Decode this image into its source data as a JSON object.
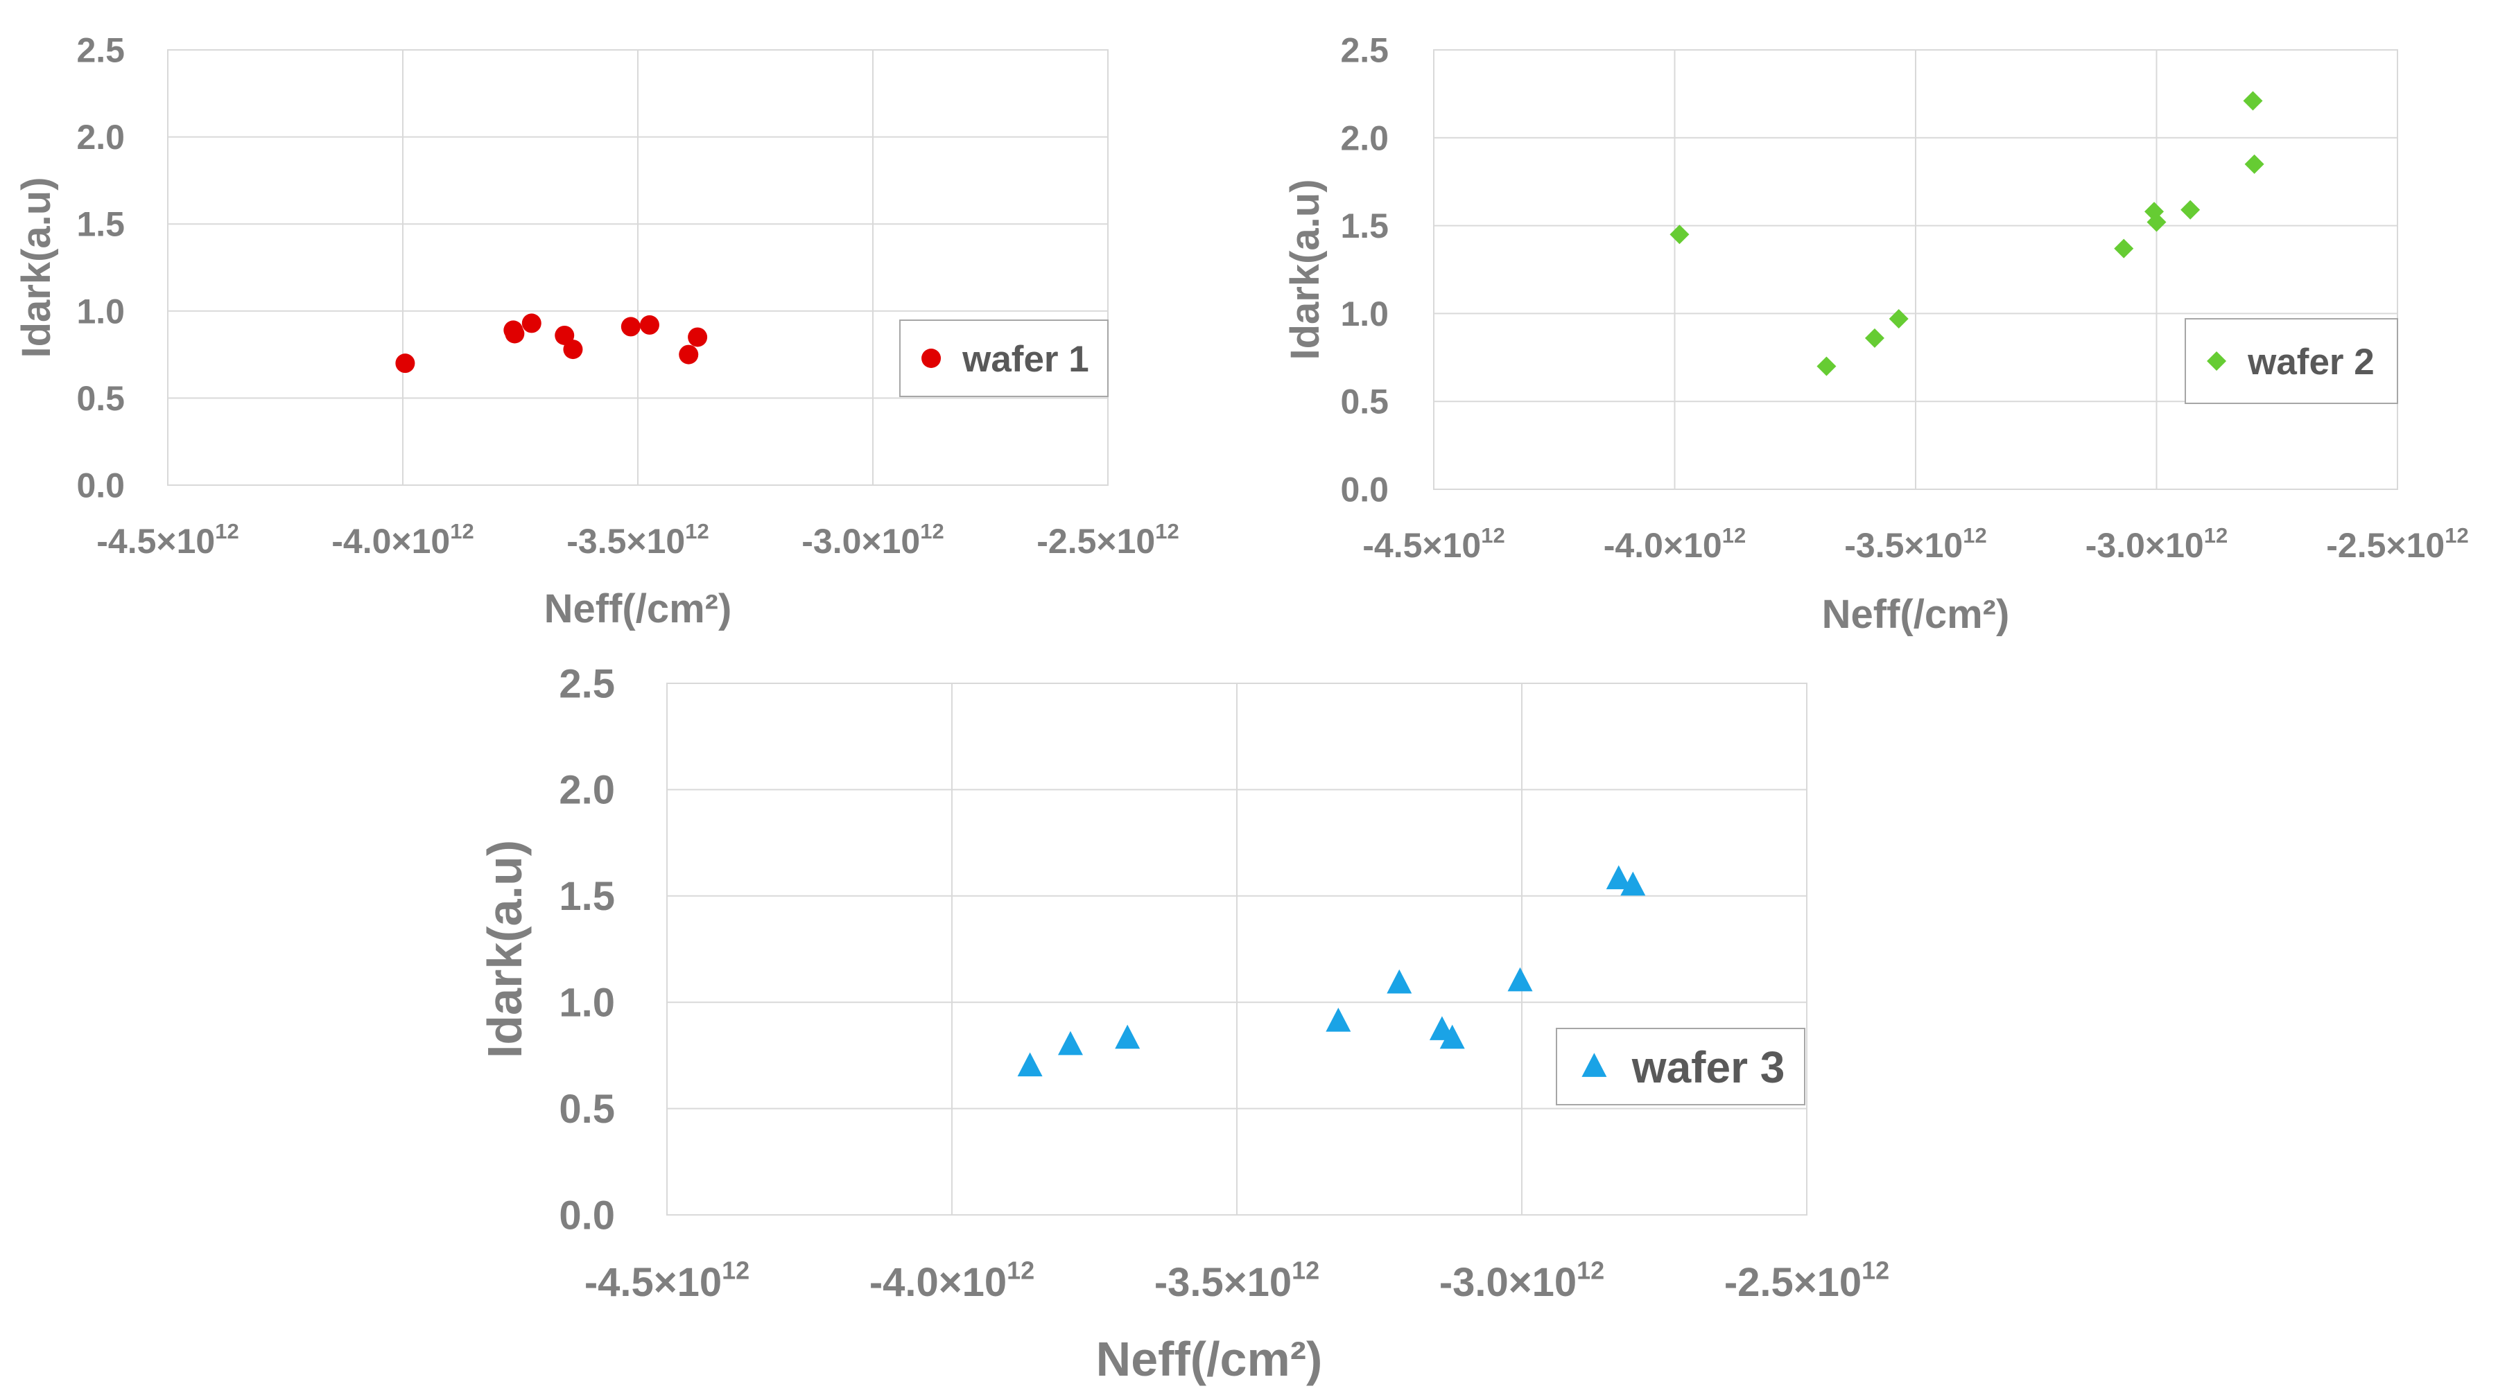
{
  "chart_data": [
    {
      "type": "scatter",
      "title": "",
      "xlabel": "Neff(/cm²)",
      "ylabel": "Idark(a.u)",
      "xlim": [
        -4500000000000.0,
        -2500000000000.0
      ],
      "ylim": [
        0,
        2.5
      ],
      "x_ticks": [
        -4500000000000.0,
        -4000000000000.0,
        -3500000000000.0,
        -3000000000000.0,
        -2500000000000.0
      ],
      "x_tick_labels": [
        {
          "mantissa": "-4.5×10",
          "exp": "12"
        },
        {
          "mantissa": "-4.0×10",
          "exp": "12"
        },
        {
          "mantissa": "-3.5×10",
          "exp": "12"
        },
        {
          "mantissa": "-3.0×10",
          "exp": "12"
        },
        {
          "mantissa": "-2.5×10",
          "exp": "12"
        }
      ],
      "y_ticks": [
        0,
        0.5,
        1.0,
        1.5,
        2.0,
        2.5
      ],
      "y_tick_labels": [
        "0.0",
        "0.5",
        "1.0",
        "1.5",
        "2.0",
        "2.5"
      ],
      "grid": true,
      "legend_position": "right",
      "series": [
        {
          "name": "wafer 1",
          "marker": "circle",
          "color": "#e00000",
          "points": [
            {
              "x": -3995000000000.0,
              "y": 0.7
            },
            {
              "x": -3765000000000.0,
              "y": 0.89
            },
            {
              "x": -3762000000000.0,
              "y": 0.87
            },
            {
              "x": -3726000000000.0,
              "y": 0.93
            },
            {
              "x": -3656000000000.0,
              "y": 0.86
            },
            {
              "x": -3638000000000.0,
              "y": 0.78
            },
            {
              "x": -3515000000000.0,
              "y": 0.91
            },
            {
              "x": -3475000000000.0,
              "y": 0.92
            },
            {
              "x": -3392000000000.0,
              "y": 0.75
            },
            {
              "x": -3373000000000.0,
              "y": 0.85
            }
          ]
        }
      ]
    },
    {
      "type": "scatter",
      "title": "",
      "xlabel": "Neff(/cm²)",
      "ylabel": "Idark(a.u)",
      "xlim": [
        -4500000000000.0,
        -2500000000000.0
      ],
      "ylim": [
        0,
        2.5
      ],
      "x_ticks": [
        -4500000000000.0,
        -4000000000000.0,
        -3500000000000.0,
        -3000000000000.0,
        -2500000000000.0
      ],
      "x_tick_labels": [
        {
          "mantissa": "-4.5×10",
          "exp": "12"
        },
        {
          "mantissa": "-4.0×10",
          "exp": "12"
        },
        {
          "mantissa": "-3.5×10",
          "exp": "12"
        },
        {
          "mantissa": "-3.0×10",
          "exp": "12"
        },
        {
          "mantissa": "-2.5×10",
          "exp": "12"
        }
      ],
      "y_ticks": [
        0,
        0.5,
        1.0,
        1.5,
        2.0,
        2.5
      ],
      "y_tick_labels": [
        "0.0",
        "0.5",
        "1.0",
        "1.5",
        "2.0",
        "2.5"
      ],
      "grid": true,
      "legend_position": "right",
      "series": [
        {
          "name": "wafer 2",
          "marker": "diamond",
          "color": "#66cc33",
          "points": [
            {
              "x": -3990000000000.0,
              "y": 1.45
            },
            {
              "x": -3685000000000.0,
              "y": 0.7
            },
            {
              "x": -3585000000000.0,
              "y": 0.86
            },
            {
              "x": -3535000000000.0,
              "y": 0.97
            },
            {
              "x": -3068000000000.0,
              "y": 1.37
            },
            {
              "x": -3005000000000.0,
              "y": 1.58
            },
            {
              "x": -3000000000000.0,
              "y": 1.52
            },
            {
              "x": -2930000000000.0,
              "y": 1.59
            },
            {
              "x": -2800000000000.0,
              "y": 2.21
            },
            {
              "x": -2797000000000.0,
              "y": 1.85
            }
          ]
        }
      ]
    },
    {
      "type": "scatter",
      "title": "",
      "xlabel": "Neff(/cm²)",
      "ylabel": "Idark(a.u)",
      "xlim": [
        -4500000000000.0,
        -2500000000000.0
      ],
      "ylim": [
        0,
        2.5
      ],
      "x_ticks": [
        -4500000000000.0,
        -4000000000000.0,
        -3500000000000.0,
        -3000000000000.0,
        -2500000000000.0
      ],
      "x_tick_labels": [
        {
          "mantissa": "-4.5×10",
          "exp": "12"
        },
        {
          "mantissa": "-4.0×10",
          "exp": "12"
        },
        {
          "mantissa": "-3.5×10",
          "exp": "12"
        },
        {
          "mantissa": "-3.0×10",
          "exp": "12"
        },
        {
          "mantissa": "-2.5×10",
          "exp": "12"
        }
      ],
      "y_ticks": [
        0,
        0.5,
        1.0,
        1.5,
        2.0,
        2.5
      ],
      "y_tick_labels": [
        "0.0",
        "0.5",
        "1.0",
        "1.5",
        "2.0",
        "2.5"
      ],
      "grid": true,
      "legend_position": "right",
      "series": [
        {
          "name": "wafer 3",
          "marker": "triangle",
          "color": "#1aa3e6",
          "points": [
            {
              "x": -3863000000000.0,
              "y": 0.7
            },
            {
              "x": -3792000000000.0,
              "y": 0.8
            },
            {
              "x": -3692000000000.0,
              "y": 0.83
            },
            {
              "x": -3322000000000.0,
              "y": 0.91
            },
            {
              "x": -3215000000000.0,
              "y": 1.09
            },
            {
              "x": -3140000000000.0,
              "y": 0.87
            },
            {
              "x": -3122000000000.0,
              "y": 0.83
            },
            {
              "x": -3003000000000.0,
              "y": 1.1
            },
            {
              "x": -2830000000000.0,
              "y": 1.58
            },
            {
              "x": -2805000000000.0,
              "y": 1.55
            }
          ]
        }
      ]
    }
  ]
}
